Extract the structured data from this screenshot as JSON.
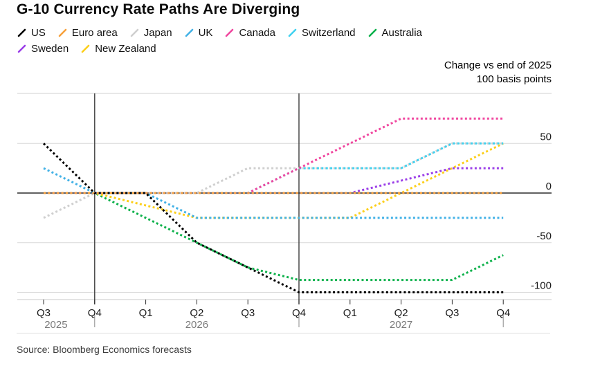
{
  "title": "G-10 Currency Rate Paths Are Diverging",
  "legend": {
    "items": [
      {
        "label": "US",
        "color": "#000000"
      },
      {
        "label": "Euro area",
        "color": "#f7a13d"
      },
      {
        "label": "Japan",
        "color": "#cfcfcf"
      },
      {
        "label": "UK",
        "color": "#41b1e6"
      },
      {
        "label": "Canada",
        "color": "#f0479f"
      },
      {
        "label": "Switzerland",
        "color": "#3fd1f0"
      },
      {
        "label": "Australia",
        "color": "#0db14b"
      },
      {
        "label": "Sweden",
        "color": "#9b3fe8"
      },
      {
        "label": "New Zealand",
        "color": "#fccf1b"
      }
    ]
  },
  "annotation": {
    "line1": "Change vs end of 2025",
    "line2": "100 basis points"
  },
  "source": "Source: Bloomberg Economics forecasts",
  "chart_data": {
    "type": "line",
    "line_style": "dotted",
    "title": "G-10 Currency Rate Paths Are Diverging",
    "ylabel": "Change vs end of 2025, 100 basis points",
    "x_categories": [
      "Q3",
      "Q4",
      "Q1",
      "Q2",
      "Q3",
      "Q4",
      "Q1",
      "Q2",
      "Q3",
      "Q4"
    ],
    "year_groups": [
      {
        "label": "2025",
        "start": 0,
        "end": 1
      },
      {
        "label": "2026",
        "start": 2,
        "end": 5
      },
      {
        "label": "2027",
        "start": 6,
        "end": 9
      }
    ],
    "y_ticks": [
      50,
      0,
      -50,
      -100
    ],
    "ylim": [
      -110,
      105
    ],
    "grid": true,
    "legend_position": "top",
    "vertical_guides": [
      1,
      5
    ],
    "series": [
      {
        "name": "US",
        "color": "#000000",
        "values": [
          50,
          0,
          0,
          -50,
          -75,
          -100,
          -100,
          -100,
          -100,
          -100
        ]
      },
      {
        "name": "Euro area",
        "color": "#f7a13d",
        "values": [
          0,
          0,
          0,
          0,
          0,
          0,
          0,
          0,
          0,
          0
        ]
      },
      {
        "name": "Japan",
        "color": "#cfcfcf",
        "values": [
          -25,
          0,
          0,
          0,
          25,
          25,
          25,
          25,
          50,
          50
        ]
      },
      {
        "name": "UK",
        "color": "#41b1e6",
        "values": [
          25,
          0,
          0,
          -25,
          -25,
          -25,
          -25,
          -25,
          -25,
          -25
        ]
      },
      {
        "name": "Canada",
        "color": "#f0479f",
        "values": [
          0,
          0,
          0,
          0,
          0,
          25,
          50,
          75,
          75,
          75
        ]
      },
      {
        "name": "Switzerland",
        "color": "#3fd1f0",
        "values": [
          0,
          0,
          0,
          0,
          0,
          25,
          25,
          25,
          50,
          50
        ]
      },
      {
        "name": "Australia",
        "color": "#0db14b",
        "values": [
          0,
          0,
          -25,
          -50,
          -75,
          -87.5,
          -87.5,
          -87.5,
          -87.5,
          -62.5
        ]
      },
      {
        "name": "Sweden",
        "color": "#9b3fe8",
        "values": [
          0,
          0,
          0,
          0,
          0,
          0,
          0,
          12.5,
          25,
          25
        ]
      },
      {
        "name": "New Zealand",
        "color": "#fccf1b",
        "values": [
          0,
          0,
          -12.5,
          -25,
          -25,
          -25,
          -25,
          0,
          25,
          50
        ]
      }
    ],
    "draw_order": [
      "Japan",
      "Australia",
      "New Zealand",
      "UK",
      "Switzerland",
      "Canada",
      "Sweden",
      "Euro area",
      "US"
    ]
  }
}
